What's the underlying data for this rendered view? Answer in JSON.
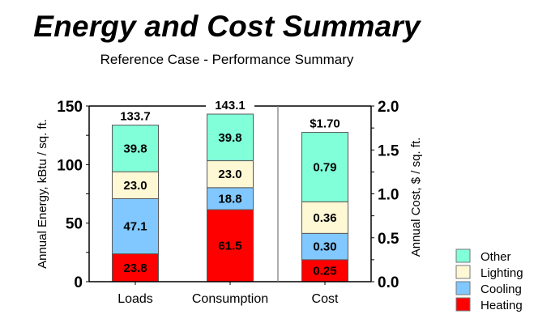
{
  "chart_data": {
    "type": "bar",
    "stacked": true,
    "title": "Energy and Cost Summary",
    "subtitle": "Reference Case - Performance Summary",
    "categories": [
      "Loads",
      "Consumption",
      "Cost"
    ],
    "ylabel": "Annual Energy, kBtu / sq. ft.",
    "y2label": "Annual Cost, $ / sq. ft.",
    "ylim": [
      0,
      150
    ],
    "y2lim": [
      0,
      2.0
    ],
    "yticks": [
      "0",
      "50",
      "100",
      "150"
    ],
    "y2ticks": [
      "0.0",
      "0.5",
      "1.0",
      "1.5",
      "2.0"
    ],
    "axis_assignment": [
      "left",
      "left",
      "right"
    ],
    "series": [
      {
        "name": "Heating",
        "color": "#ff0000",
        "values": [
          23.8,
          61.5,
          0.25
        ],
        "labels": [
          "23.8",
          "61.5",
          "0.25"
        ]
      },
      {
        "name": "Cooling",
        "color": "#80c8ff",
        "values": [
          47.1,
          18.8,
          0.3
        ],
        "labels": [
          "47.1",
          "18.8",
          "0.30"
        ]
      },
      {
        "name": "Lighting",
        "color": "#fff8d4",
        "values": [
          23.0,
          23.0,
          0.36
        ],
        "labels": [
          "23.0",
          "23.0",
          "0.36"
        ]
      },
      {
        "name": "Other",
        "color": "#80ffd8",
        "values": [
          39.8,
          39.8,
          0.79
        ],
        "labels": [
          "39.8",
          "39.8",
          "0.79"
        ]
      }
    ],
    "totals": [
      "133.7",
      "143.1",
      "$1.70"
    ],
    "total_values": [
      133.7,
      143.1,
      1.7
    ],
    "legend": {
      "placement": "bottom-right",
      "entries": [
        "Other",
        "Lighting",
        "Cooling",
        "Heating"
      ]
    },
    "grid": false
  }
}
